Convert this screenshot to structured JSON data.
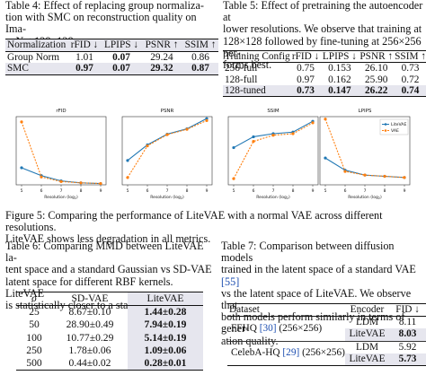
{
  "table4": {
    "caption": "Table 4: Effect of replacing group normalization with SMC on reconstruction quality on ImageNet 128×128",
    "caption_lines": [
      "Table 4: Effect of replacing group normaliza-",
      "tion with SMC on reconstruction quality on Ima-",
      "geNet 128×128"
    ],
    "headers": [
      "Normalization",
      "rFID ↓",
      "LPIPS ↓",
      "PSNR ↑",
      "SSIM ↑"
    ],
    "rows": [
      [
        "Group Norm",
        "1.01",
        "0.07",
        "29.24",
        "0.86"
      ],
      [
        "SMC",
        "0.97",
        "0.07",
        "29.32",
        "0.87"
      ]
    ]
  },
  "table5": {
    "caption_lines": [
      "Table 5: Effect of pretraining the autoencoder at",
      "lower resolutions.   We observe that training at",
      "128×128 followed by fine-tuning at 256×256 per-",
      "forms best."
    ],
    "headers": [
      "Training Config",
      "rFID ↓",
      "LPIPS ↓",
      "PSNR ↑",
      "SSIM ↑"
    ],
    "rows": [
      [
        "256-full",
        "0.75",
        "0.153",
        "26.10",
        "0.73"
      ],
      [
        "128-full",
        "0.97",
        "0.162",
        "25.90",
        "0.72"
      ],
      [
        "128-tuned",
        "0.73",
        "0.147",
        "26.22",
        "0.74"
      ]
    ]
  },
  "figure5": {
    "caption_lines": [
      "Figure 5: Comparing the performance of LiteVAE with a normal VAE across different resolutions.",
      "LiteVAE shows less degradation in all metrics."
    ],
    "legend": [
      "LiteVAE",
      "VAE"
    ],
    "colors": {
      "litevae": "#1f77b4",
      "vae": "#ff7f0e"
    }
  },
  "chart_data": [
    {
      "type": "line",
      "title": "rFID",
      "xlabel": "Resolution (log2)",
      "x": [
        5,
        6,
        7,
        8,
        9
      ],
      "ylim": [
        0,
        52
      ],
      "series": [
        {
          "name": "LiteVAE",
          "values": [
            13,
            7,
            3,
            1.5,
            1
          ]
        },
        {
          "name": "VAE",
          "values": [
            48,
            6,
            2.5,
            1.5,
            1
          ]
        }
      ]
    },
    {
      "type": "line",
      "title": "PSNR",
      "xlabel": "Resolution (log2)",
      "x": [
        5,
        6,
        7,
        8,
        9
      ],
      "ylim": [
        19,
        33
      ],
      "series": [
        {
          "name": "LiteVAE",
          "values": [
            24,
            27.2,
            29.4,
            30.5,
            32.6
          ]
        },
        {
          "name": "VAE",
          "values": [
            20.5,
            27,
            29.3,
            30.4,
            32.2
          ]
        }
      ]
    },
    {
      "type": "line",
      "title": "SSIM",
      "xlabel": "Resolution (log2)",
      "x": [
        5,
        6,
        7,
        8,
        9
      ],
      "ylim": [
        0.72,
        0.94
      ],
      "series": [
        {
          "name": "LiteVAE",
          "values": [
            0.84,
            0.875,
            0.885,
            0.89,
            0.925
          ]
        },
        {
          "name": "VAE",
          "values": [
            0.74,
            0.86,
            0.88,
            0.885,
            0.92
          ]
        }
      ]
    },
    {
      "type": "line",
      "title": "LPIPS",
      "xlabel": "Resolution (log2)",
      "x": [
        5,
        6,
        7,
        8,
        9
      ],
      "ylim": [
        0,
        0.28
      ],
      "series": [
        {
          "name": "LiteVAE",
          "values": [
            0.11,
            0.06,
            0.04,
            0.035,
            0.03
          ]
        },
        {
          "name": "VAE",
          "values": [
            0.27,
            0.055,
            0.04,
            0.035,
            0.03
          ]
        }
      ],
      "legend_position": "top-right"
    }
  ],
  "table6": {
    "caption_lines": [
      "Table 6: Comparing MMD between LiteVAE la-",
      "tent space and a standard Gaussian vs SD-VAE",
      "latent space for different RBF kernels. LiteVAE",
      "is statistically closer to a standard Gaussian."
    ],
    "headers": [
      "σ",
      "SD-VAE",
      "LiteVAE"
    ],
    "rows": [
      [
        "25",
        "8.67±0.10",
        "1.44±0.28"
      ],
      [
        "50",
        "28.90±0.49",
        "7.94±0.19"
      ],
      [
        "100",
        "10.77±0.29",
        "5.14±0.19"
      ],
      [
        "250",
        "1.78±0.06",
        "1.09±0.06"
      ],
      [
        "500",
        "0.44±0.02",
        "0.28±0.01"
      ]
    ]
  },
  "table7": {
    "caption_line1_pre": "Table 7: Comparison between diffusion models",
    "caption_line2_pre": "trained in the latent space of a standard VAE ",
    "caption_line2_cite": "[55]",
    "caption_lines_rest": [
      "vs the latent space of LiteVAE. We observe that",
      "both models perform similarly in terms of gener-",
      "ation quality."
    ],
    "headers": [
      "Dataset",
      "Encoder",
      "FID ↓"
    ],
    "groups": [
      {
        "name_pre": "FFHQ ",
        "cite": "[30]",
        "name_post": " (256×256)",
        "rows": [
          [
            "LDM",
            "8.11"
          ],
          [
            "LiteVAE",
            "8.03"
          ]
        ]
      },
      {
        "name_pre": "CelebA-HQ ",
        "cite": "[29]",
        "name_post": " (256×256)",
        "rows": [
          [
            "LDM",
            "5.92"
          ],
          [
            "LiteVAE",
            "5.73"
          ]
        ]
      }
    ]
  }
}
